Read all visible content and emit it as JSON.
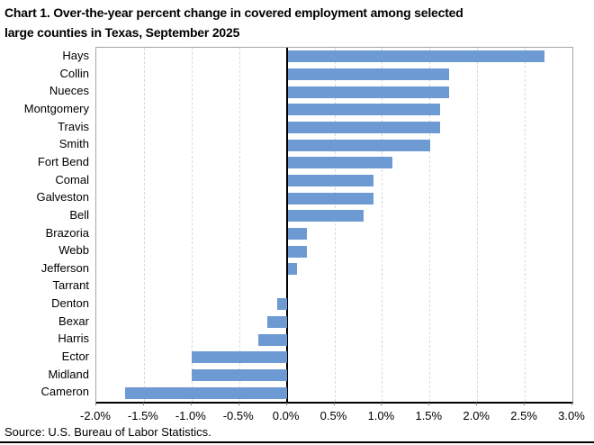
{
  "header": {
    "title_lines": [
      "Chart 1. Over-the-year percent change in covered employment among selected",
      "large counties in Texas, September 2025"
    ]
  },
  "footer": {
    "source": "Source: U.S. Bureau of Labor Statistics."
  },
  "colors": {
    "bar": "#6D9AD3",
    "gridline": "#D9D9D9",
    "frame": "#A6A6A6",
    "axis": "#000000",
    "text": "#000000"
  },
  "chart_data": {
    "type": "bar",
    "orientation": "horizontal",
    "title": "Chart 1. Over-the-year percent change in covered employment among selected large counties in Texas, September 2025",
    "categories": [
      "Hays",
      "Collin",
      "Nueces",
      "Montgomery",
      "Travis",
      "Smith",
      "Fort Bend",
      "Comal",
      "Galveston",
      "Bell",
      "Brazoria",
      "Webb",
      "Jefferson",
      "Tarrant",
      "Denton",
      "Bexar",
      "Harris",
      "Ector",
      "Midland",
      "Cameron"
    ],
    "values": [
      2.7,
      1.7,
      1.7,
      1.6,
      1.6,
      1.5,
      1.1,
      0.9,
      0.9,
      0.8,
      0.2,
      0.2,
      0.1,
      0.0,
      -0.1,
      -0.2,
      -0.3,
      -1.0,
      -1.0,
      -1.7
    ],
    "xlabel": "",
    "ylabel": "",
    "xlim": [
      -2.0,
      3.0
    ],
    "x_tick_step": 0.5,
    "x_tick_labels": [
      "-2.0%",
      "-1.5%",
      "-1.0%",
      "-0.5%",
      "0.0%",
      "0.5%",
      "1.0%",
      "1.5%",
      "2.0%",
      "2.5%",
      "3.0%"
    ],
    "grid": "vertical-dashed",
    "legend": "none",
    "source": "Source: U.S. Bureau of Labor Statistics."
  }
}
